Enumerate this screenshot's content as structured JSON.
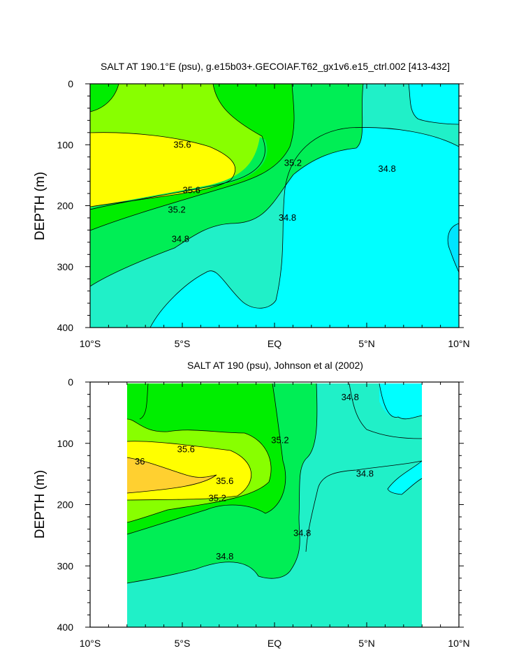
{
  "colors": {
    "lt_34_6": "#00e5ff",
    "34_6_34_8": "#00ffff",
    "34_8_35_0": "#20f0c8",
    "35_0_35_2": "#00ee55",
    "35_2_35_4": "#00ee00",
    "35_4_35_6": "#88ff00",
    "35_6_35_8": "#ffff00",
    "35_8_36_0": "#ffd030"
  },
  "chart_data": [
    {
      "type": "contour",
      "title": "SALT AT 190.1°E (psu), g.e15b03+.GECOIAF.T62_gx1v6.e15_ctrl.002 [413-432]",
      "ylabel": "DEPTH (m)",
      "xlabel": "",
      "x_ticks": [
        "10°S",
        "5°S",
        "EQ",
        "5°N",
        "10°N"
      ],
      "x_tick_values": [
        -10,
        -5,
        0,
        5,
        10
      ],
      "y_ticks": [
        "0",
        "100",
        "200",
        "300",
        "400"
      ],
      "y_tick_values": [
        0,
        100,
        200,
        300,
        400
      ],
      "xlim": [
        -10,
        10
      ],
      "ylim": [
        400,
        0
      ],
      "contour_labels": [
        {
          "text": "35.6",
          "x": -5,
          "y": 100
        },
        {
          "text": "35.2",
          "x": 1,
          "y": 130
        },
        {
          "text": "34.8",
          "x": 6.1,
          "y": 140
        },
        {
          "text": "35.6",
          "x": -4.5,
          "y": 175
        },
        {
          "text": "35.2",
          "x": -5.3,
          "y": 207
        },
        {
          "text": "34.8",
          "x": 0.7,
          "y": 220
        },
        {
          "text": "34.8",
          "x": -5.1,
          "y": 255
        }
      ]
    },
    {
      "type": "contour",
      "title": "SALT AT 190 (psu), Johnson et al (2002)",
      "ylabel": "DEPTH (m)",
      "xlabel": "",
      "x_ticks": [
        "10°S",
        "5°S",
        "EQ",
        "5°N",
        "10°N"
      ],
      "x_tick_values": [
        -10,
        -5,
        0,
        5,
        10
      ],
      "y_ticks": [
        "0",
        "100",
        "200",
        "300",
        "400"
      ],
      "y_tick_values": [
        0,
        100,
        200,
        300,
        400
      ],
      "xlim": [
        -10,
        10
      ],
      "ylim": [
        400,
        0
      ],
      "data_xrange": [
        -8,
        8
      ],
      "contour_labels": [
        {
          "text": "34.8",
          "x": 4.1,
          "y": 25
        },
        {
          "text": "35.2",
          "x": 0.3,
          "y": 95
        },
        {
          "text": "35.6",
          "x": -4.8,
          "y": 110
        },
        {
          "text": "36",
          "x": -7.3,
          "y": 130
        },
        {
          "text": "34.8",
          "x": 4.9,
          "y": 150
        },
        {
          "text": "35.6",
          "x": -2.7,
          "y": 162
        },
        {
          "text": "35.2",
          "x": -3.1,
          "y": 190
        },
        {
          "text": "34.8",
          "x": 1.5,
          "y": 247
        },
        {
          "text": "34.8",
          "x": -2.7,
          "y": 285
        }
      ]
    }
  ]
}
